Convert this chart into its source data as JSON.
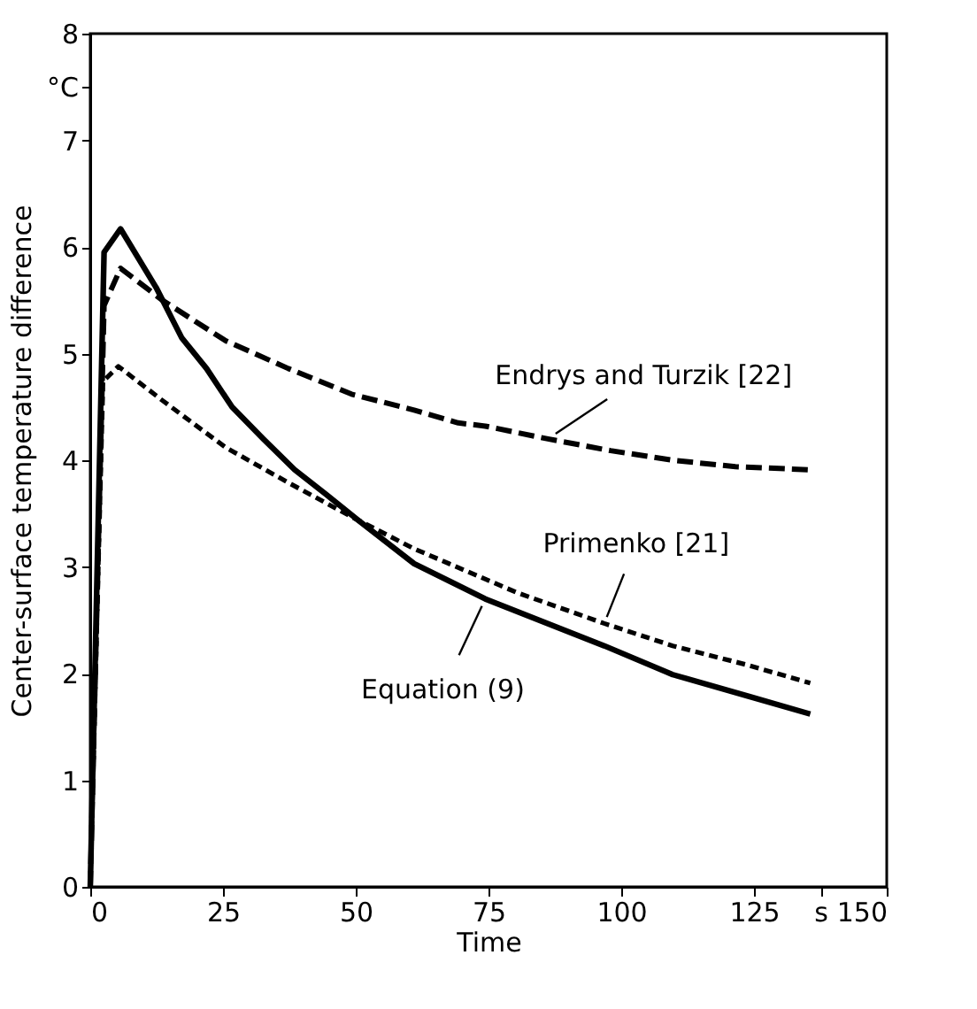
{
  "chart_data": {
    "type": "line",
    "xlabel": "Time",
    "ylabel": "Center-surface temperature difference",
    "xlim": [
      0,
      150
    ],
    "ylim": [
      0,
      8
    ],
    "xticks": [
      0,
      25,
      50,
      75,
      100,
      125,
      {
        "value": 137.5,
        "label": "s"
      },
      150
    ],
    "yticks": [
      0,
      1,
      2,
      3,
      4,
      5,
      6,
      7,
      {
        "value": 7.5,
        "label": "°C"
      },
      8
    ],
    "grid": false,
    "series": [
      {
        "name": "Endrys and Turzik [22]",
        "color": "#000000",
        "line_style": "dashed",
        "x": [
          0,
          2.6,
          5.7,
          13.6,
          25.5,
          37.3,
          49.2,
          61,
          69.3,
          74.4,
          86.2,
          98,
          109.7,
          121.5,
          135.6
        ],
        "values": [
          0,
          5.45,
          5.8,
          5.5,
          5.12,
          4.86,
          4.62,
          4.47,
          4.35,
          4.32,
          4.2,
          4.09,
          4.0,
          3.94,
          3.91
        ]
      },
      {
        "name": "Primenko [21]",
        "color": "#000000",
        "line_style": "dotted",
        "x": [
          0,
          2.4,
          5.3,
          13.6,
          25.5,
          37.3,
          49.2,
          61,
          80.3,
          96.8,
          109.7,
          123.8,
          135.6
        ],
        "values": [
          0,
          4.74,
          4.88,
          4.56,
          4.12,
          3.79,
          3.47,
          3.17,
          2.76,
          2.47,
          2.26,
          2.08,
          1.91
        ]
      },
      {
        "name": "Equation (9)",
        "color": "#000000",
        "line_style": "solid",
        "x": [
          0,
          2.6,
          5.7,
          12.4,
          17.2,
          21.9,
          26.7,
          32.6,
          38.5,
          44.4,
          50.4,
          61,
          74.4,
          96.8,
          109.7,
          123.8,
          135.6
        ],
        "values": [
          0,
          5.95,
          6.17,
          5.62,
          5.15,
          4.86,
          4.5,
          4.2,
          3.91,
          3.68,
          3.44,
          3.03,
          2.7,
          2.26,
          1.99,
          1.79,
          1.62
        ]
      }
    ]
  }
}
